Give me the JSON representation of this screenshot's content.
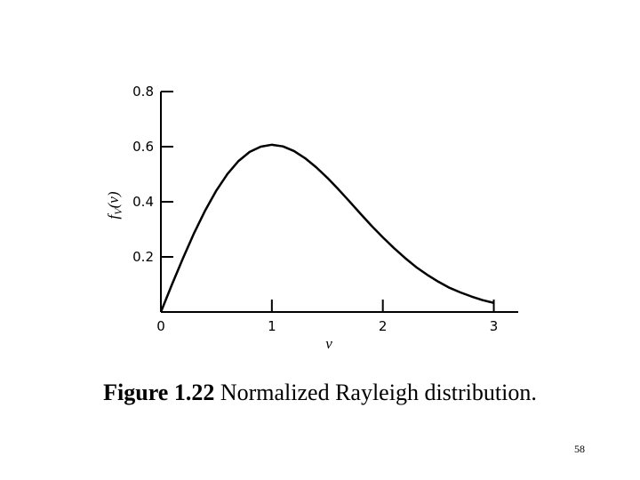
{
  "chart_data": {
    "type": "line",
    "x_label": "v",
    "y_label": [
      "f",
      "V",
      "(v)"
    ],
    "x": [
      0,
      0.1,
      0.2,
      0.3,
      0.4,
      0.5,
      0.6,
      0.7,
      0.8,
      0.9,
      1.0,
      1.1,
      1.2,
      1.3,
      1.4,
      1.5,
      1.6,
      1.7,
      1.8,
      1.9,
      2.0,
      2.1,
      2.2,
      2.3,
      2.4,
      2.5,
      2.6,
      2.7,
      2.8,
      2.9,
      3.0
    ],
    "series": [
      {
        "color": "#000000",
        "values": [
          0,
          0.1,
          0.196,
          0.287,
          0.369,
          0.441,
          0.501,
          0.548,
          0.581,
          0.6,
          0.607,
          0.601,
          0.584,
          0.558,
          0.525,
          0.487,
          0.445,
          0.401,
          0.356,
          0.312,
          0.271,
          0.232,
          0.196,
          0.163,
          0.135,
          0.11,
          0.088,
          0.071,
          0.056,
          0.043,
          0.033
        ]
      }
    ],
    "xlim": [
      0,
      3.22
    ],
    "ylim": [
      0,
      0.8
    ],
    "xticks": [
      0,
      1,
      2,
      3
    ],
    "yticks": [
      0.2,
      0.4,
      0.6,
      0.8
    ],
    "grid": false
  },
  "caption": {
    "label": "Figure 1.22",
    "text": "Normalized Rayleigh distribution."
  },
  "page_number": "58"
}
